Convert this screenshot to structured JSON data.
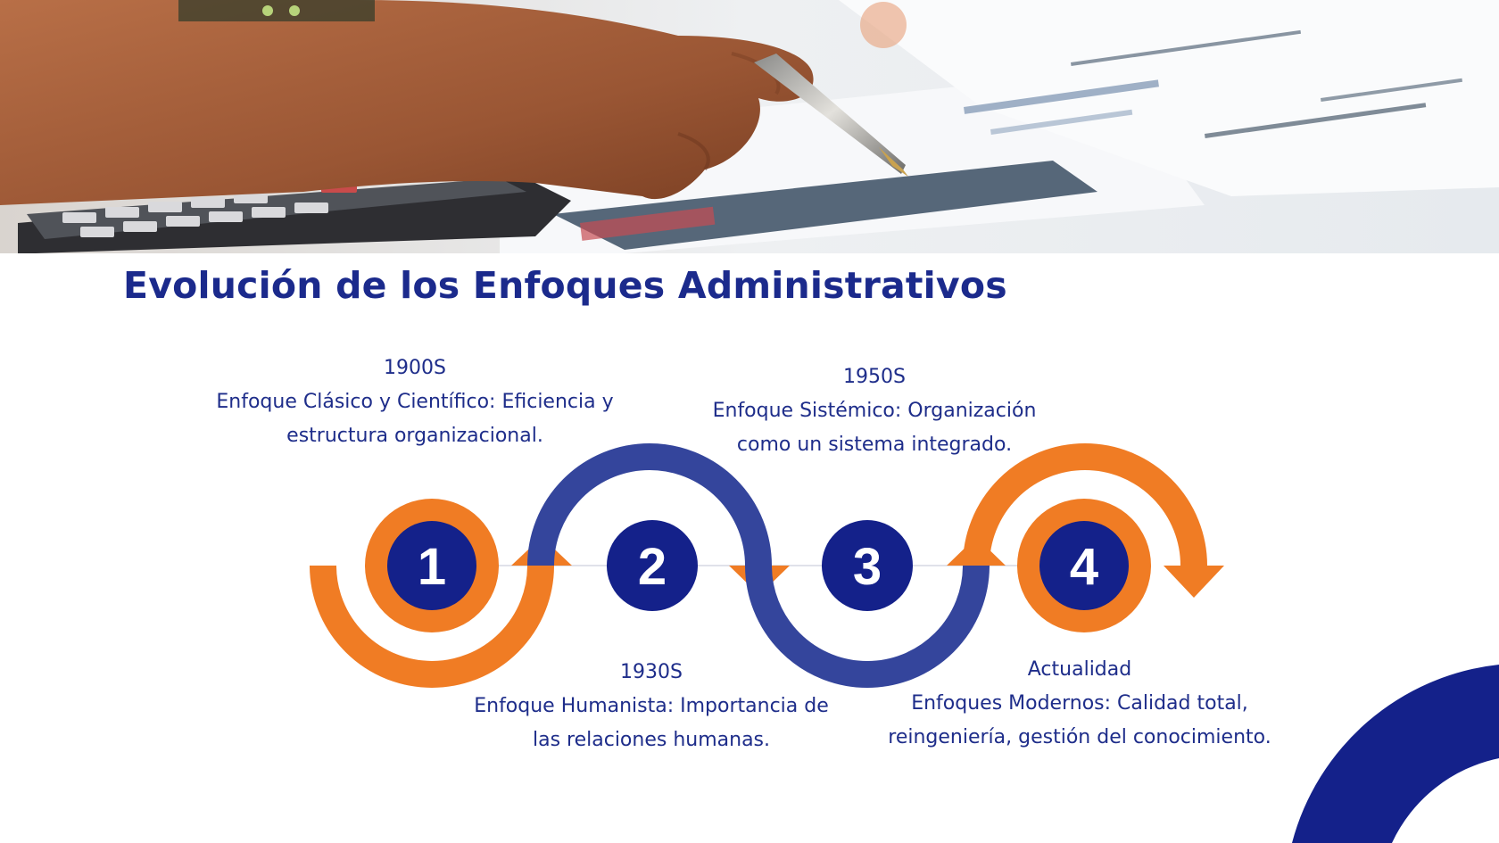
{
  "title": "Evolución de los Enfoques Administrativos",
  "colors": {
    "navy": "#14218a",
    "blue": "#34459c",
    "orange": "#f07c24",
    "text": "#1e2d8a"
  },
  "hero": {
    "image": "hand-writing-with-pen-over-calculator-and-documents"
  },
  "steps": [
    {
      "number": "1",
      "year": "1900S",
      "description": "Enfoque Clásico y Científico: Eficiencia y estructura organizacional."
    },
    {
      "number": "2",
      "year": "1930S",
      "description": "Enfoque Humanista: Importancia de las relaciones humanas."
    },
    {
      "number": "3",
      "year": "1950S",
      "description": "Enfoque Sistémico: Organización como un sistema integrado."
    },
    {
      "number": "4",
      "year": "Actualidad",
      "description": "Enfoques Modernos: Calidad total, reingeniería, gestión del conocimiento."
    }
  ]
}
